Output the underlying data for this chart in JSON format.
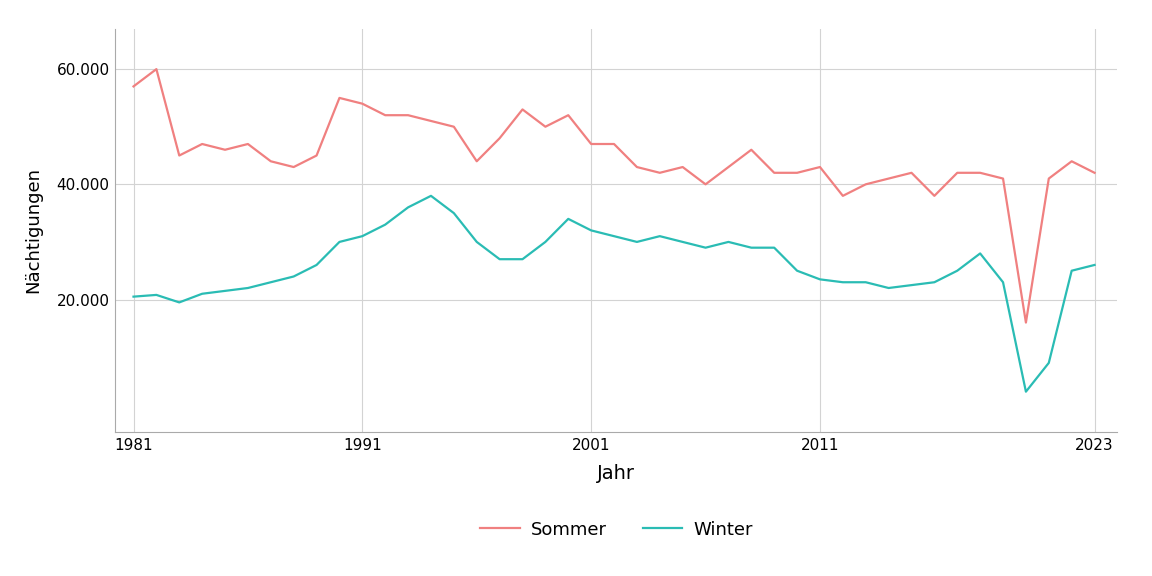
{
  "years": [
    1981,
    1982,
    1983,
    1984,
    1985,
    1986,
    1987,
    1988,
    1989,
    1990,
    1991,
    1992,
    1993,
    1994,
    1995,
    1996,
    1997,
    1998,
    1999,
    2000,
    2001,
    2002,
    2003,
    2004,
    2005,
    2006,
    2007,
    2008,
    2009,
    2010,
    2011,
    2012,
    2013,
    2014,
    2015,
    2016,
    2017,
    2018,
    2019,
    2020,
    2021,
    2022,
    2023
  ],
  "sommer": [
    57000,
    60000,
    45000,
    47000,
    46000,
    47000,
    44000,
    43000,
    45000,
    55000,
    54000,
    52000,
    52000,
    51000,
    50000,
    44000,
    48000,
    53000,
    50000,
    52000,
    47000,
    47000,
    43000,
    42000,
    43000,
    40000,
    43000,
    46000,
    42000,
    42000,
    43000,
    38000,
    40000,
    41000,
    42000,
    38000,
    42000,
    42000,
    41000,
    16000,
    41000,
    44000,
    42000
  ],
  "winter": [
    20500,
    20800,
    19500,
    21000,
    21500,
    22000,
    23000,
    24000,
    26000,
    30000,
    31000,
    33000,
    36000,
    38000,
    35000,
    30000,
    27000,
    27000,
    30000,
    34000,
    32000,
    31000,
    30000,
    31000,
    30000,
    29000,
    30000,
    29000,
    29000,
    25000,
    23500,
    23000,
    23000,
    22000,
    22500,
    23000,
    25000,
    28000,
    23000,
    4000,
    9000,
    25000,
    26000
  ],
  "sommer_color": "#F08080",
  "winter_color": "#2ABCB4",
  "xlabel": "Jahr",
  "ylabel": "Nächtigungen",
  "xticks": [
    1981,
    1991,
    2001,
    2011,
    2023
  ],
  "yticks": [
    20000,
    40000,
    60000
  ],
  "ytick_labels": [
    "20.000",
    "40.000",
    "60.000"
  ],
  "ylim": [
    -3000,
    67000
  ],
  "xlim": [
    1980.2,
    2024.0
  ],
  "legend_labels": [
    "Sommer",
    "Winter"
  ],
  "background_color": "#ffffff",
  "panel_background": "#ffffff",
  "grid_color": "#d3d3d3",
  "linewidth": 1.6
}
